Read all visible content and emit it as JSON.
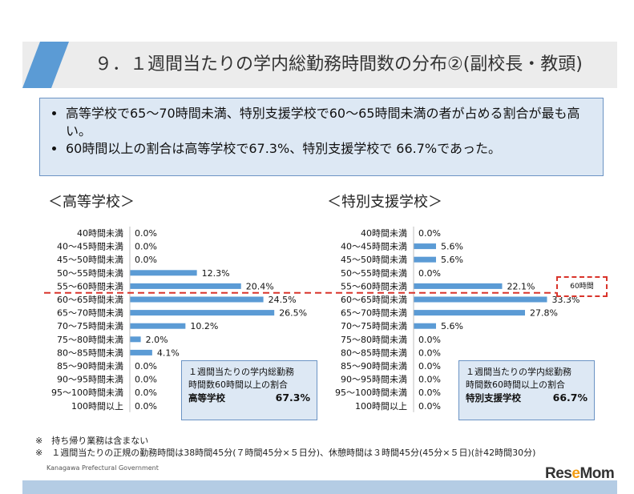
{
  "header": {
    "title": "９．１週間当たりの学内総勤務時間数の分布②(副校長・教頭)"
  },
  "summary": {
    "bullets": [
      "高等学校で65～70時間未満、特別支援学校で60～65時間未満の者が占める割合が最も高い。",
      "60時間以上の割合は高等学校で67.3%、特別支援学校で 66.7%であった。"
    ]
  },
  "threshold_label": "60時間",
  "colors": {
    "bar": "#5b9bd5",
    "threshold": "#d9342b",
    "box_bg": "#dde8f4",
    "box_border": "#6b93c4"
  },
  "chart_data": [
    {
      "type": "bar",
      "orientation": "horizontal",
      "title": "＜高等学校＞",
      "categories": [
        "40時間未満",
        "40～45時間未満",
        "45～50時間未満",
        "50～55時間未満",
        "55～60時間未満",
        "60～65時間未満",
        "65～70時間未満",
        "70～75時間未満",
        "75～80時間未満",
        "80～85時間未満",
        "85～90時間未満",
        "90～95時間未満",
        "95～100時間未満",
        "100時間以上"
      ],
      "values": [
        0.0,
        0.0,
        0.0,
        12.3,
        20.4,
        24.5,
        26.5,
        10.2,
        2.0,
        4.1,
        0.0,
        0.0,
        0.0,
        0.0
      ],
      "value_labels": [
        "0.0%",
        "0.0%",
        "0.0%",
        "12.3%",
        "20.4%",
        "24.5%",
        "26.5%",
        "10.2%",
        "2.0%",
        "4.1%",
        "0.0%",
        "0.0%",
        "0.0%",
        "0.0%"
      ],
      "unit": "%",
      "annotation": {
        "line1": "１週間当たりの学内総勤務",
        "line2": "時間数60時間以上の割合",
        "school": "高等学校",
        "value": "67.3%"
      }
    },
    {
      "type": "bar",
      "orientation": "horizontal",
      "title": "＜特別支援学校＞",
      "categories": [
        "40時間未満",
        "40～45時間未満",
        "45～50時間未満",
        "50～55時間未満",
        "55～60時間未満",
        "60～65時間未満",
        "65～70時間未満",
        "70～75時間未満",
        "75～80時間未満",
        "80～85時間未満",
        "85～90時間未満",
        "90～95時間未満",
        "95～100時間未満",
        "100時間以上"
      ],
      "values": [
        0.0,
        5.6,
        5.6,
        0.0,
        22.1,
        33.3,
        27.8,
        5.6,
        0.0,
        0.0,
        0.0,
        0.0,
        0.0,
        0.0
      ],
      "value_labels": [
        "0.0%",
        "5.6%",
        "5.6%",
        "0.0%",
        "22.1%",
        "33.3%",
        "27.8%",
        "5.6%",
        "0.0%",
        "0.0%",
        "0.0%",
        "0.0%",
        "0.0%",
        "0.0%"
      ],
      "unit": "%",
      "annotation": {
        "line1": "１週間当たりの学内総勤務",
        "line2": "時間数60時間以上の割合",
        "school": "特別支援学校",
        "value": "66.7%"
      }
    }
  ],
  "notes": [
    "※　持ち帰り業務は含まない",
    "※　１週間当たりの正規の勤務時間は38時間45分(７時間45分×５日分)、休憩時間は３時間45分(45分×５日)(計42時間30分)"
  ],
  "org": "Kanagawa Prefectural Government",
  "logo": {
    "part1": "Res",
    "part2": "e",
    "part3": "Mom"
  }
}
